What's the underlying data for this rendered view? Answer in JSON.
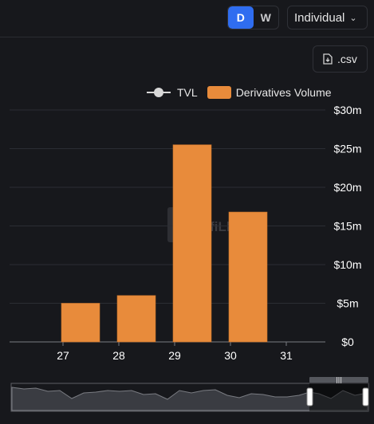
{
  "controls": {
    "toggle_d": "D",
    "toggle_w": "W",
    "mode": "Individual",
    "csv": ".csv"
  },
  "colors": {
    "bar": "#e88b3b",
    "accent": "#2f6df0",
    "background": "#17181c"
  },
  "chart_data": {
    "type": "bar",
    "categories": [
      "27",
      "28",
      "29",
      "30",
      "31"
    ],
    "series": [
      {
        "name": "TVL",
        "values": [
          null,
          null,
          null,
          null,
          null
        ]
      },
      {
        "name": "Derivatives Volume",
        "values": [
          5.0,
          6.0,
          25.5,
          16.8,
          null
        ]
      }
    ],
    "y_ticks": [
      "$0",
      "$5m",
      "$10m",
      "$15m",
      "$20m",
      "$25m",
      "$30m"
    ],
    "ylim": [
      0,
      30
    ],
    "y_unit": "$m",
    "y_axis_position": "right",
    "grid": true,
    "legend": "top-right",
    "watermark": "DefiLlama"
  }
}
